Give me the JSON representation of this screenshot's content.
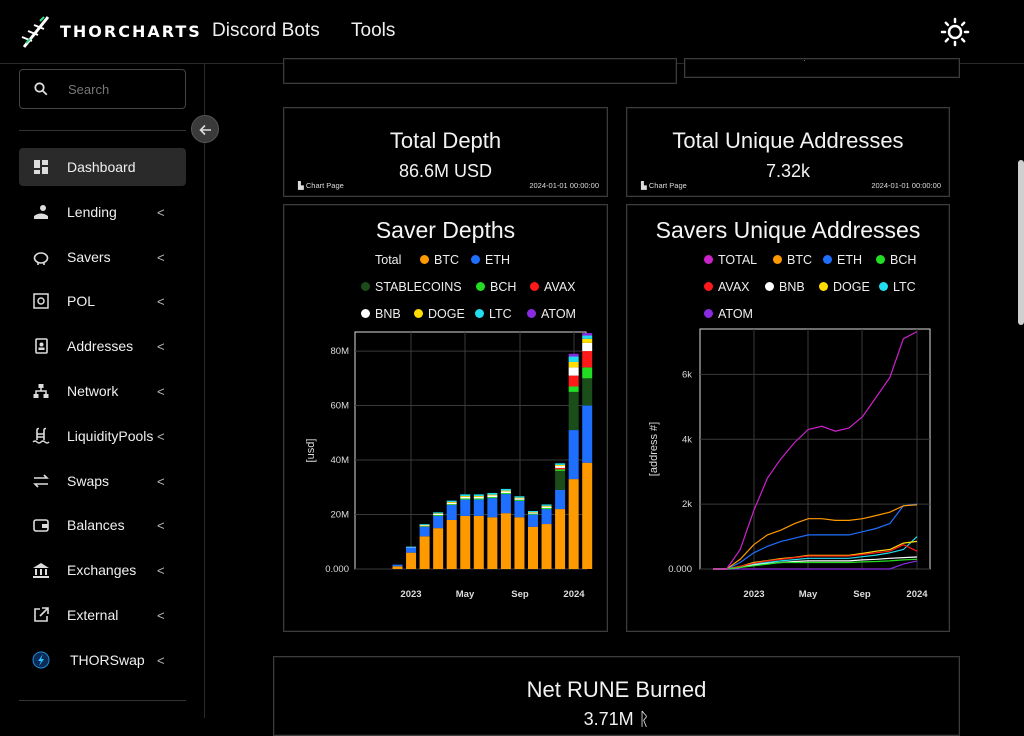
{
  "header": {
    "brand": "THORCHARTS",
    "nav": [
      "Discord Bots",
      "Tools"
    ]
  },
  "sidebar": {
    "search_placeholder": "Search",
    "items": [
      {
        "label": "Dashboard",
        "icon": "dashboard-icon",
        "active": true
      },
      {
        "label": "Lending",
        "icon": "lending-icon"
      },
      {
        "label": "Savers",
        "icon": "piggy-bank-icon"
      },
      {
        "label": "POL",
        "icon": "pol-icon"
      },
      {
        "label": "Addresses",
        "icon": "address-book-icon"
      },
      {
        "label": "Network",
        "icon": "network-icon"
      },
      {
        "label": "LiquidityPools",
        "icon": "pool-icon"
      },
      {
        "label": "Swaps",
        "icon": "swap-icon"
      },
      {
        "label": "Balances",
        "icon": "wallet-icon"
      },
      {
        "label": "Exchanges",
        "icon": "bank-icon"
      },
      {
        "label": "External",
        "icon": "external-link-icon"
      },
      {
        "label": "THORSwap",
        "icon": "thorswap-icon"
      }
    ]
  },
  "kpis": [
    {
      "title": "Total Depth",
      "value": "86.6M USD",
      "link": "Chart Page",
      "timestamp": "2024-01-01 00:00:00"
    },
    {
      "title": "Total Unique Addresses",
      "value": "7.32k",
      "link": "Chart Page",
      "timestamp": "2024-01-01 00:00:00"
    }
  ],
  "bottom_card": {
    "title": "Net RUNE Burned",
    "value": "3.71M ᚱ"
  },
  "colors": {
    "Total": "#000000",
    "BTC": "#ff9900",
    "ETH": "#1f6fff",
    "STABLECOINS": "#1b4d1b",
    "BCH": "#22dd22",
    "AVAX": "#ff1a1a",
    "BNB": "#ffffff",
    "DOGE": "#ffdd00",
    "LTC": "#22ddee",
    "ATOM": "#8a2be2",
    "TOTAL": "#cc22cc"
  },
  "chart_data": [
    {
      "type": "bar",
      "title": "Saver Depths",
      "ylabel": "[usd]",
      "xlabel": "",
      "ylim": [
        0,
        87000000
      ],
      "y_ticks": [
        "0.000",
        "20M",
        "40M",
        "60M",
        "80M"
      ],
      "x_ticks": [
        "2023",
        "May",
        "Sep",
        "2024"
      ],
      "legend": [
        "Total",
        "BTC",
        "ETH",
        "STABLECOINS",
        "BCH",
        "AVAX",
        "BNB",
        "DOGE",
        "LTC",
        "ATOM"
      ],
      "categories": [
        "2022-11",
        "2022-12",
        "2023-01",
        "2023-02",
        "2023-03",
        "2023-04",
        "2023-05",
        "2023-06",
        "2023-07",
        "2023-08",
        "2023-09",
        "2023-10",
        "2023-11",
        "2023-12",
        "2024-01"
      ],
      "series": [
        {
          "name": "BTC",
          "values": [
            1000000,
            6000000,
            12000000,
            15000000,
            18000000,
            19500000,
            19500000,
            19000000,
            20500000,
            19000000,
            15500000,
            16500000,
            22000000,
            33000000,
            39000000
          ]
        },
        {
          "name": "ETH",
          "values": [
            600000,
            2000000,
            3500000,
            4500000,
            5500000,
            6000000,
            6000000,
            7000000,
            7000000,
            6000000,
            4500000,
            5500000,
            7000000,
            18000000,
            21000000
          ]
        },
        {
          "name": "STABLECOINS",
          "values": [
            0,
            0,
            0,
            0,
            0,
            0,
            0,
            0,
            0,
            0,
            0,
            0,
            7000000,
            14000000,
            10000000
          ]
        },
        {
          "name": "BCH",
          "values": [
            0,
            0,
            200000,
            300000,
            300000,
            400000,
            400000,
            400000,
            400000,
            400000,
            300000,
            400000,
            600000,
            2000000,
            4000000
          ]
        },
        {
          "name": "AVAX",
          "values": [
            0,
            0,
            0,
            0,
            0,
            0,
            0,
            0,
            0,
            0,
            0,
            0,
            500000,
            4000000,
            6000000
          ]
        },
        {
          "name": "BNB",
          "values": [
            0,
            100000,
            300000,
            400000,
            500000,
            600000,
            600000,
            600000,
            600000,
            500000,
            400000,
            500000,
            700000,
            3000000,
            3000000
          ]
        },
        {
          "name": "DOGE",
          "values": [
            0,
            0,
            200000,
            200000,
            300000,
            300000,
            300000,
            300000,
            300000,
            300000,
            200000,
            300000,
            400000,
            2000000,
            1500000
          ]
        },
        {
          "name": "LTC",
          "values": [
            0,
            100000,
            300000,
            400000,
            500000,
            600000,
            600000,
            600000,
            600000,
            500000,
            400000,
            500000,
            600000,
            2000000,
            1200000
          ]
        },
        {
          "name": "ATOM",
          "values": [
            0,
            0,
            0,
            0,
            0,
            0,
            0,
            0,
            0,
            0,
            0,
            0,
            0,
            1000000,
            900000
          ]
        }
      ]
    },
    {
      "type": "line",
      "title": "Savers Unique Addresses",
      "ylabel": "[address #]",
      "xlabel": "",
      "ylim": [
        0,
        7400
      ],
      "y_ticks": [
        "0.000",
        "2k",
        "4k",
        "6k"
      ],
      "x_ticks": [
        "2023",
        "May",
        "Sep",
        "2024"
      ],
      "legend": [
        "TOTAL",
        "BTC",
        "ETH",
        "BCH",
        "AVAX",
        "BNB",
        "DOGE",
        "LTC",
        "ATOM"
      ],
      "x": [
        "2022-10",
        "2022-11",
        "2022-12",
        "2023-01",
        "2023-02",
        "2023-03",
        "2023-04",
        "2023-05",
        "2023-06",
        "2023-07",
        "2023-08",
        "2023-09",
        "2023-10",
        "2023-11",
        "2023-12",
        "2024-01"
      ],
      "series": [
        {
          "name": "TOTAL",
          "values": [
            0,
            0,
            600,
            1800,
            2800,
            3400,
            3900,
            4300,
            4400,
            4250,
            4350,
            4700,
            5300,
            5900,
            7100,
            7320
          ]
        },
        {
          "name": "BTC",
          "values": [
            0,
            0,
            300,
            750,
            1050,
            1200,
            1400,
            1550,
            1550,
            1500,
            1500,
            1550,
            1650,
            1750,
            1950,
            1980
          ]
        },
        {
          "name": "ETH",
          "values": [
            0,
            0,
            200,
            500,
            700,
            850,
            950,
            1050,
            1050,
            1050,
            1050,
            1150,
            1250,
            1400,
            1950,
            2000
          ]
        },
        {
          "name": "BCH",
          "values": [
            0,
            0,
            50,
            100,
            150,
            200,
            200,
            200,
            200,
            200,
            200,
            220,
            230,
            250,
            280,
            300
          ]
        },
        {
          "name": "AVAX",
          "values": [
            0,
            0,
            80,
            180,
            250,
            300,
            350,
            400,
            400,
            400,
            400,
            450,
            500,
            550,
            750,
            550
          ]
        },
        {
          "name": "BNB",
          "values": [
            0,
            0,
            50,
            120,
            170,
            200,
            230,
            250,
            250,
            250,
            250,
            280,
            300,
            330,
            350,
            370
          ]
        },
        {
          "name": "DOGE",
          "values": [
            0,
            0,
            80,
            200,
            260,
            320,
            360,
            420,
            420,
            420,
            420,
            480,
            550,
            600,
            800,
            850
          ]
        },
        {
          "name": "LTC",
          "values": [
            0,
            0,
            60,
            150,
            200,
            250,
            290,
            330,
            330,
            330,
            330,
            380,
            430,
            500,
            600,
            1000
          ]
        },
        {
          "name": "ATOM",
          "values": [
            0,
            0,
            0,
            0,
            0,
            0,
            0,
            0,
            0,
            0,
            0,
            0,
            0,
            0,
            150,
            250
          ]
        }
      ]
    }
  ]
}
